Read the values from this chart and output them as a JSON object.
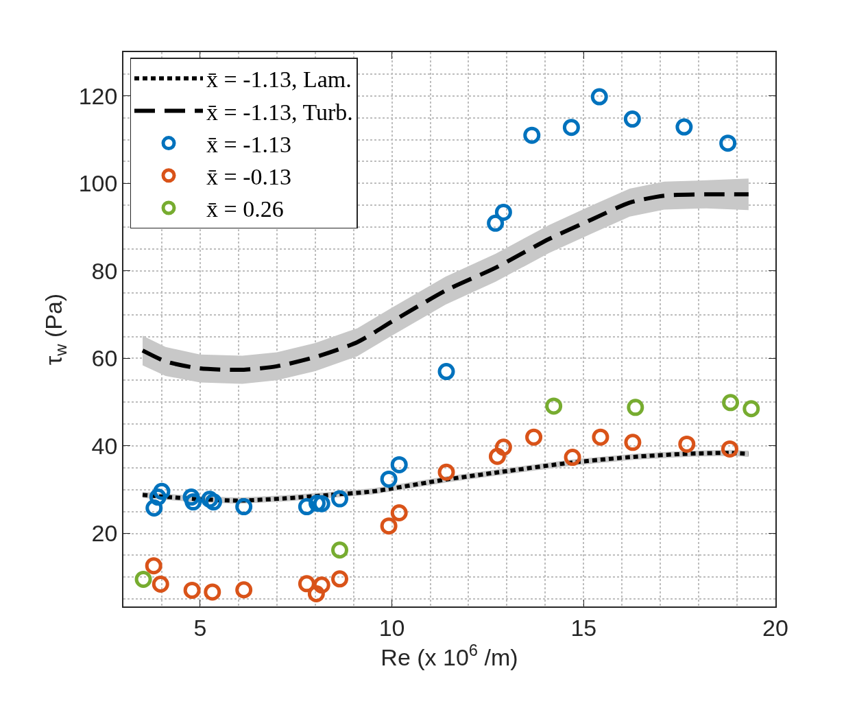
{
  "chart_data": {
    "type": "scatter",
    "xlabel": "Re (x 10$^{6}$ /m)",
    "ylabel": "τ$_{w}$ (Pa)",
    "xlim": [
      3,
      20
    ],
    "ylim": [
      3.3,
      130
    ],
    "xticks": [
      5,
      10,
      15,
      20
    ],
    "yticks": [
      20,
      40,
      60,
      80,
      100,
      120
    ],
    "grid": true,
    "legend": "top left",
    "marker": "circle",
    "series": [
      {
        "name": "x̄ = -1.13, Lam.",
        "type": "line",
        "marker": "none",
        "line_style": "dotted",
        "color": "#000000",
        "x": [
          3.5,
          4.8,
          6.0,
          7.2,
          8.4,
          9.5,
          11.4,
          12.8,
          14.7,
          16.3,
          17.7,
          18.8,
          19.3
        ],
        "values": [
          28.8,
          27.9,
          27.5,
          28.0,
          28.8,
          29.6,
          32.3,
          34.0,
          36.2,
          37.5,
          38.2,
          38.4,
          38.2
        ],
        "lower": [
          28.1,
          27.2,
          26.8,
          27.3,
          28.1,
          28.9,
          31.6,
          33.3,
          35.5,
          36.8,
          37.5,
          37.7,
          37.5
        ],
        "upper": [
          29.5,
          28.6,
          28.2,
          28.7,
          29.5,
          30.3,
          33.0,
          34.7,
          36.9,
          38.2,
          38.9,
          39.1,
          38.9
        ]
      },
      {
        "name": "x̄ = -1.13, Turb.",
        "type": "line",
        "marker": "none",
        "line_style": "dashed",
        "color": "#000000",
        "x": [
          3.5,
          4.1,
          5.0,
          6.1,
          7.0,
          8.0,
          9.1,
          10.0,
          11.4,
          12.7,
          14.1,
          15.2,
          16.2,
          17.1,
          18.2,
          19.3
        ],
        "values": [
          61.8,
          59.3,
          57.7,
          57.4,
          58.2,
          60.3,
          63.7,
          68.4,
          75.5,
          80.7,
          87.3,
          91.7,
          95.6,
          97.2,
          97.5,
          97.5
        ],
        "lower": [
          58.4,
          56.0,
          54.5,
          54.2,
          55.0,
          57.1,
          60.5,
          65.2,
          72.3,
          77.5,
          84.1,
          88.5,
          92.4,
          94.0,
          94.3,
          93.9
        ],
        "upper": [
          65.2,
          62.6,
          60.9,
          60.6,
          61.4,
          63.5,
          66.9,
          71.6,
          78.7,
          83.9,
          90.5,
          94.9,
          98.8,
          100.4,
          100.7,
          101.1
        ]
      },
      {
        "name": "x̄ = -1.13",
        "color": "#0072bd",
        "x": [
          3.8,
          3.9,
          4.0,
          4.77,
          4.82,
          5.25,
          5.35,
          6.14,
          7.78,
          8.05,
          8.17,
          8.64,
          9.92,
          10.19,
          11.42,
          12.7,
          12.91,
          13.65,
          14.68,
          15.41,
          16.27,
          17.62,
          18.76
        ],
        "values": [
          25.8,
          28.3,
          29.6,
          28.3,
          27.2,
          27.8,
          27.2,
          26.1,
          26.1,
          26.9,
          26.8,
          27.9,
          32.4,
          35.7,
          57.0,
          90.9,
          93.4,
          111.0,
          112.8,
          119.8,
          114.7,
          112.9,
          109.2
        ]
      },
      {
        "name": "x̄ = -0.13",
        "color": "#d95319",
        "x": [
          3.79,
          3.97,
          4.79,
          5.32,
          6.14,
          7.78,
          8.03,
          8.17,
          8.64,
          9.92,
          10.19,
          11.42,
          12.75,
          12.91,
          13.7,
          14.71,
          15.44,
          16.28,
          17.69,
          18.81
        ],
        "values": [
          12.6,
          8.4,
          7.0,
          6.6,
          7.1,
          8.5,
          6.2,
          8.2,
          9.6,
          21.7,
          24.7,
          34.0,
          37.6,
          39.7,
          42.0,
          37.4,
          42.0,
          40.8,
          40.4,
          39.3
        ]
      },
      {
        "name": "x̄ = 0.26",
        "color": "#77ac30",
        "x": [
          3.52,
          8.64,
          14.22,
          16.35,
          18.83,
          19.37
        ],
        "values": [
          9.5,
          16.2,
          49.1,
          48.8,
          49.9,
          48.5
        ]
      }
    ]
  }
}
